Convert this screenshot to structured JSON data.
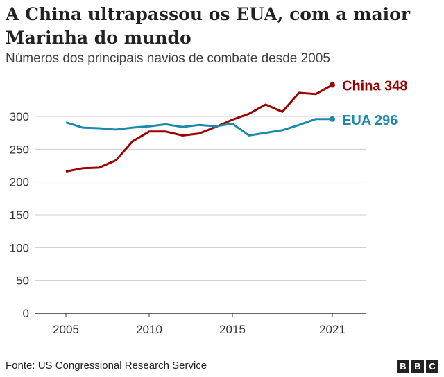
{
  "title": "A China ultrapassou os EUA, com a maior Marinha do mundo",
  "subtitle": "Números dos principais navios de combate desde 2005",
  "source": "Fonte: US Congressional Research Service",
  "logo": "BBC",
  "chart_data": {
    "type": "line",
    "title": "A China ultrapassou os EUA, com a maior Marinha do mundo",
    "subtitle": "Números dos principais navios de combate desde 2005",
    "x": [
      2005,
      2006,
      2007,
      2008,
      2009,
      2010,
      2011,
      2012,
      2013,
      2014,
      2015,
      2016,
      2017,
      2018,
      2019,
      2020,
      2021
    ],
    "xticks": [
      2005,
      2010,
      2015,
      2021
    ],
    "yticks": [
      0,
      50,
      100,
      150,
      200,
      250,
      300
    ],
    "ylim": [
      0,
      350
    ],
    "xlim": [
      2005,
      2021
    ],
    "grid": "horizontal",
    "series": [
      {
        "name": "China",
        "label": "China 348",
        "color": "#990000",
        "values": [
          216,
          221,
          222,
          233,
          262,
          277,
          277,
          271,
          274,
          284,
          295,
          304,
          318,
          307,
          336,
          334,
          348
        ]
      },
      {
        "name": "EUA",
        "label": "EUA 296",
        "color": "#1b8aaa",
        "values": [
          291,
          283,
          282,
          280,
          283,
          285,
          288,
          284,
          287,
          285,
          289,
          271,
          275,
          279,
          287,
          296,
          296
        ]
      }
    ]
  }
}
